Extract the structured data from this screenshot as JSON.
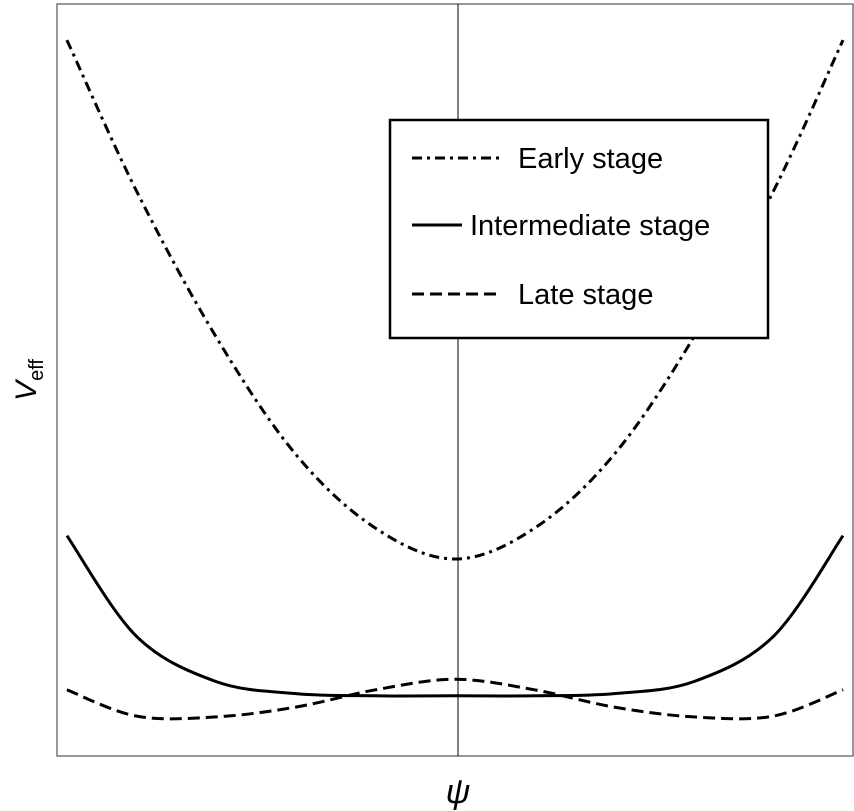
{
  "chart_data": {
    "type": "line",
    "xlabel": "ψ",
    "ylabel_main": "V",
    "ylabel_sub": "eff",
    "xlim": [
      -1,
      1
    ],
    "ylim": [
      0,
      1
    ],
    "ticks_shown": false,
    "grid": false,
    "legend_position": "top-right",
    "series": [
      {
        "name": "Early stage",
        "style": "dash-dot",
        "x": [
          -0.975,
          -0.8,
          -0.6,
          -0.4,
          -0.2,
          0,
          0.2,
          0.4,
          0.6,
          0.8,
          0.975
        ],
        "y": [
          0.952,
          0.751,
          0.557,
          0.401,
          0.303,
          0.262,
          0.303,
          0.401,
          0.557,
          0.751,
          0.952
        ]
      },
      {
        "name": "Intermediate stage",
        "style": "solid",
        "x": [
          -0.975,
          -0.8,
          -0.6,
          -0.4,
          -0.2,
          0,
          0.2,
          0.4,
          0.6,
          0.8,
          0.975
        ],
        "y": [
          0.293,
          0.159,
          0.099,
          0.083,
          0.08,
          0.08,
          0.08,
          0.083,
          0.099,
          0.159,
          0.293
        ]
      },
      {
        "name": "Late stage",
        "style": "dashed",
        "x": [
          -0.975,
          -0.8,
          -0.6,
          -0.4,
          -0.2,
          0,
          0.2,
          0.4,
          0.6,
          0.8,
          0.975
        ],
        "y": [
          0.088,
          0.053,
          0.052,
          0.065,
          0.088,
          0.102,
          0.088,
          0.065,
          0.052,
          0.053,
          0.088
        ]
      }
    ]
  }
}
